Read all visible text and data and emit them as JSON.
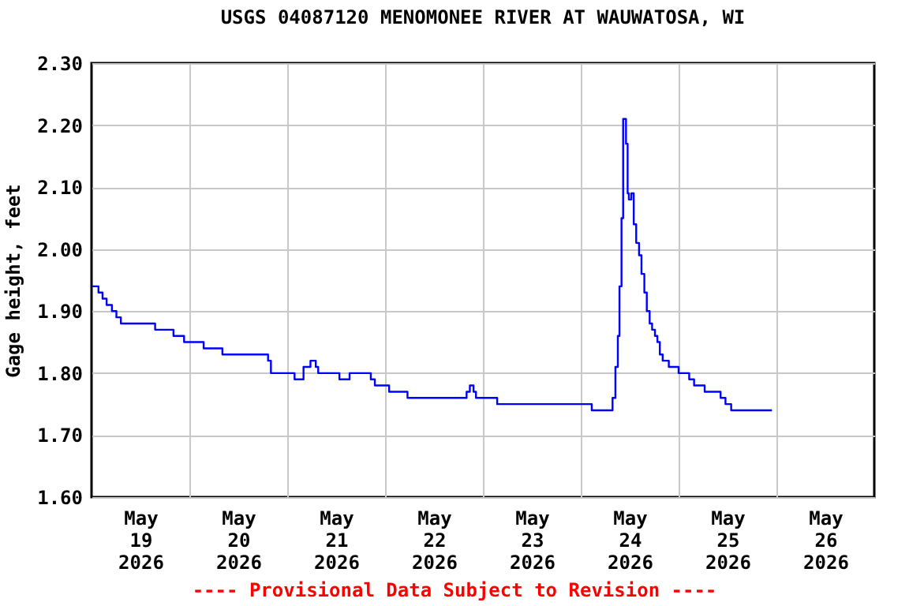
{
  "chart_data": {
    "type": "step",
    "title": "USGS 04087120 MENOMONEE RIVER AT WAUWATOSA, WI",
    "ylabel": "Gage height, feet",
    "annotations": [
      "---- Provisional Data Subject to Revision ----"
    ],
    "color": "#0000ff",
    "x": [
      "2026-05-19T00:06",
      "2026-05-19T01:42",
      "2026-05-19T02:42",
      "2026-05-19T03:42",
      "2026-05-19T05:00",
      "2026-05-19T06:06",
      "2026-05-19T07:12",
      "2026-05-19T15:36",
      "2026-05-19T20:06",
      "2026-05-19T22:42",
      "2026-05-20T03:30",
      "2026-05-20T08:06",
      "2026-05-20T19:18",
      "2026-05-20T20:00",
      "2026-05-21T01:48",
      "2026-05-21T04:00",
      "2026-05-21T05:42",
      "2026-05-21T07:00",
      "2026-05-21T07:36",
      "2026-05-21T12:48",
      "2026-05-21T15:18",
      "2026-05-21T20:30",
      "2026-05-21T21:30",
      "2026-05-22T01:00",
      "2026-05-22T05:30",
      "2026-05-22T20:00",
      "2026-05-22T20:48",
      "2026-05-22T21:42",
      "2026-05-22T22:18",
      "2026-05-23T03:30",
      "2026-05-24T02:42",
      "2026-05-24T07:48",
      "2026-05-24T08:30",
      "2026-05-24T09:06",
      "2026-05-24T09:30",
      "2026-05-24T10:00",
      "2026-05-24T10:24",
      "2026-05-24T10:48",
      "2026-05-24T11:06",
      "2026-05-24T11:30",
      "2026-05-24T11:48",
      "2026-05-24T12:24",
      "2026-05-24T13:00",
      "2026-05-24T13:36",
      "2026-05-24T14:18",
      "2026-05-24T14:54",
      "2026-05-24T15:36",
      "2026-05-24T16:12",
      "2026-05-24T16:54",
      "2026-05-24T17:30",
      "2026-05-24T18:12",
      "2026-05-24T18:48",
      "2026-05-24T19:24",
      "2026-05-24T20:06",
      "2026-05-24T21:36",
      "2026-05-25T00:00",
      "2026-05-25T02:36",
      "2026-05-25T03:48",
      "2026-05-25T06:24",
      "2026-05-25T10:18",
      "2026-05-25T11:30",
      "2026-05-25T12:54",
      "2026-05-25T22:54"
    ],
    "values": [
      1.94,
      1.93,
      1.92,
      1.91,
      1.9,
      1.89,
      1.88,
      1.87,
      1.86,
      1.85,
      1.84,
      1.83,
      1.82,
      1.8,
      1.79,
      1.81,
      1.82,
      1.81,
      1.8,
      1.79,
      1.8,
      1.79,
      1.78,
      1.77,
      1.76,
      1.77,
      1.78,
      1.77,
      1.76,
      1.75,
      1.74,
      1.76,
      1.81,
      1.86,
      1.94,
      2.05,
      2.21,
      2.21,
      2.17,
      2.09,
      2.08,
      2.09,
      2.04,
      2.01,
      1.99,
      1.96,
      1.93,
      1.9,
      1.88,
      1.87,
      1.86,
      1.85,
      1.83,
      1.82,
      1.81,
      1.8,
      1.79,
      1.78,
      1.77,
      1.76,
      1.75,
      1.74,
      1.74
    ],
    "xlim": [
      "2026-05-19T00:00",
      "2026-05-27T00:00"
    ],
    "xticks": [
      {
        "value": "2026-05-19T12:00",
        "label": "May 19 2026"
      },
      {
        "value": "2026-05-20T00:00",
        "label": null
      },
      {
        "value": "2026-05-20T12:00",
        "label": "May 20 2026"
      },
      {
        "value": "2026-05-21T00:00",
        "label": null
      },
      {
        "value": "2026-05-21T12:00",
        "label": "May 21 2026"
      },
      {
        "value": "2026-05-22T00:00",
        "label": null
      },
      {
        "value": "2026-05-22T12:00",
        "label": "May 22 2026"
      },
      {
        "value": "2026-05-23T00:00",
        "label": null
      },
      {
        "value": "2026-05-23T12:00",
        "label": "May 23 2026"
      },
      {
        "value": "2026-05-24T00:00",
        "label": null
      },
      {
        "value": "2026-05-24T12:00",
        "label": "May 24 2026"
      },
      {
        "value": "2026-05-25T00:00",
        "label": null
      },
      {
        "value": "2026-05-25T12:00",
        "label": "May 25 2026"
      },
      {
        "value": "2026-05-26T00:00",
        "label": null
      },
      {
        "value": "2026-05-26T12:00",
        "label": "May 26 2026"
      }
    ],
    "ylim": [
      1.6,
      2.3
    ],
    "yticks": [
      {
        "value": 1.6,
        "label": "1.60"
      },
      {
        "value": 1.7,
        "label": "1.70"
      },
      {
        "value": 1.8,
        "label": "1.80"
      },
      {
        "value": 1.9,
        "label": "1.90"
      },
      {
        "value": 2.0,
        "label": "2.00"
      },
      {
        "value": 2.1,
        "label": "2.10"
      },
      {
        "value": 2.2,
        "label": "2.20"
      },
      {
        "value": 2.3,
        "label": "2.30"
      }
    ],
    "grid": true
  }
}
